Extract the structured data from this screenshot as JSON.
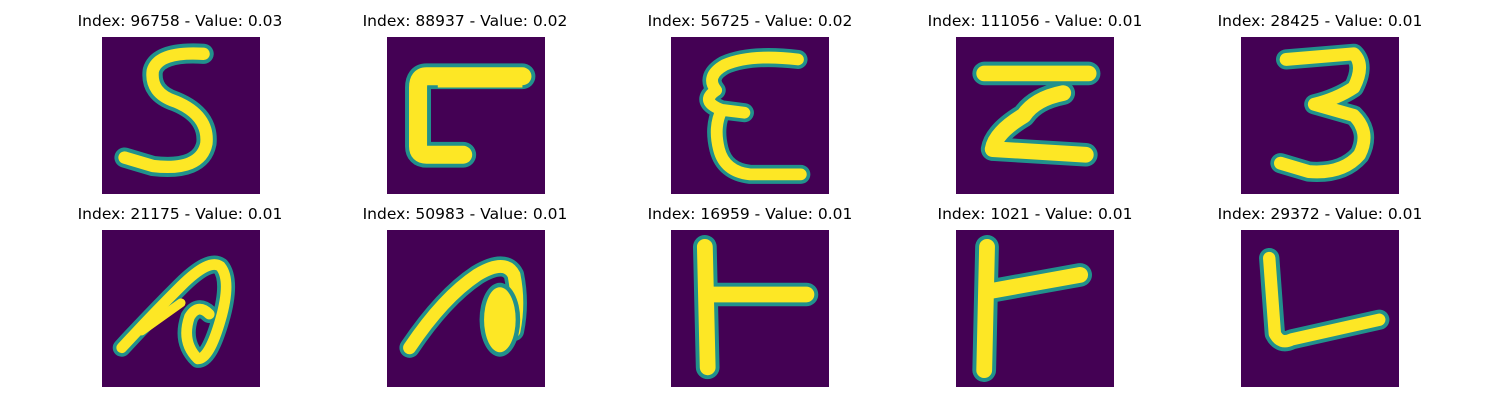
{
  "colors": {
    "background": "#440154",
    "stroke_core": "#fde725",
    "stroke_edge": "#21918c"
  },
  "panels": [
    {
      "title": "Index: 96758 - Value: 0.03",
      "glyph": "5"
    },
    {
      "title": "Index: 88937 - Value: 0.02",
      "glyph": "C-block"
    },
    {
      "title": "Index: 56725 - Value: 0.02",
      "glyph": "epsilon"
    },
    {
      "title": "Index: 111056 - Value: 0.01",
      "glyph": "Z-shape"
    },
    {
      "title": "Index: 28425 - Value: 0.01",
      "glyph": "3"
    },
    {
      "title": "Index: 21175 - Value: 0.01",
      "glyph": "n-loop"
    },
    {
      "title": "Index: 50983 - Value: 0.01",
      "glyph": "n-blob"
    },
    {
      "title": "Index: 16959 - Value: 0.01",
      "glyph": "T-left"
    },
    {
      "title": "Index: 1021 - Value: 0.01",
      "glyph": "T-left-2"
    },
    {
      "title": "Index: 29372 - Value: 0.01",
      "glyph": "L"
    }
  ]
}
